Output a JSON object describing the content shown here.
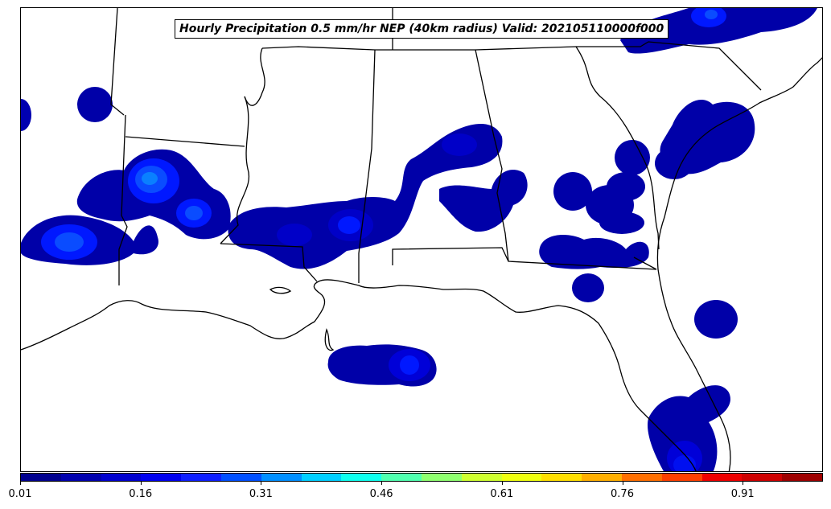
{
  "title": "Hourly Precipitation 0.5 mm/hr NEP (40km radius) Valid: 202105110000f000",
  "colorbar": {
    "colors": [
      "#00008f",
      "#0000af",
      "#0000cf",
      "#0000ef",
      "#0f1fff",
      "#004fff",
      "#008fff",
      "#00cfff",
      "#0fffef",
      "#4fffaf",
      "#8fff6f",
      "#cfff2f",
      "#efff0f",
      "#ffdf00",
      "#ffaf00",
      "#ff6f00",
      "#ff3f00",
      "#ef0000",
      "#cf0000",
      "#9f0000"
    ],
    "tick_labels": [
      "0.01",
      "0.16",
      "0.31",
      "0.46",
      "0.61",
      "0.76",
      "0.91"
    ]
  },
  "chart_data": {
    "type": "heatmap",
    "title": "Hourly Precipitation 0.5 mm/hr NEP (40km radius) Valid: 202105110000f000",
    "colorbar_range": [
      0.01,
      1.0
    ],
    "colorbar_ticks": [
      0.01,
      0.16,
      0.31,
      0.46,
      0.61,
      0.76,
      0.91
    ],
    "colormap": "jet"
  },
  "map": {
    "region": "Southeastern United States",
    "land_color": "#ffffff",
    "ocean_color": "#ffffff",
    "border_color": "#000000"
  }
}
